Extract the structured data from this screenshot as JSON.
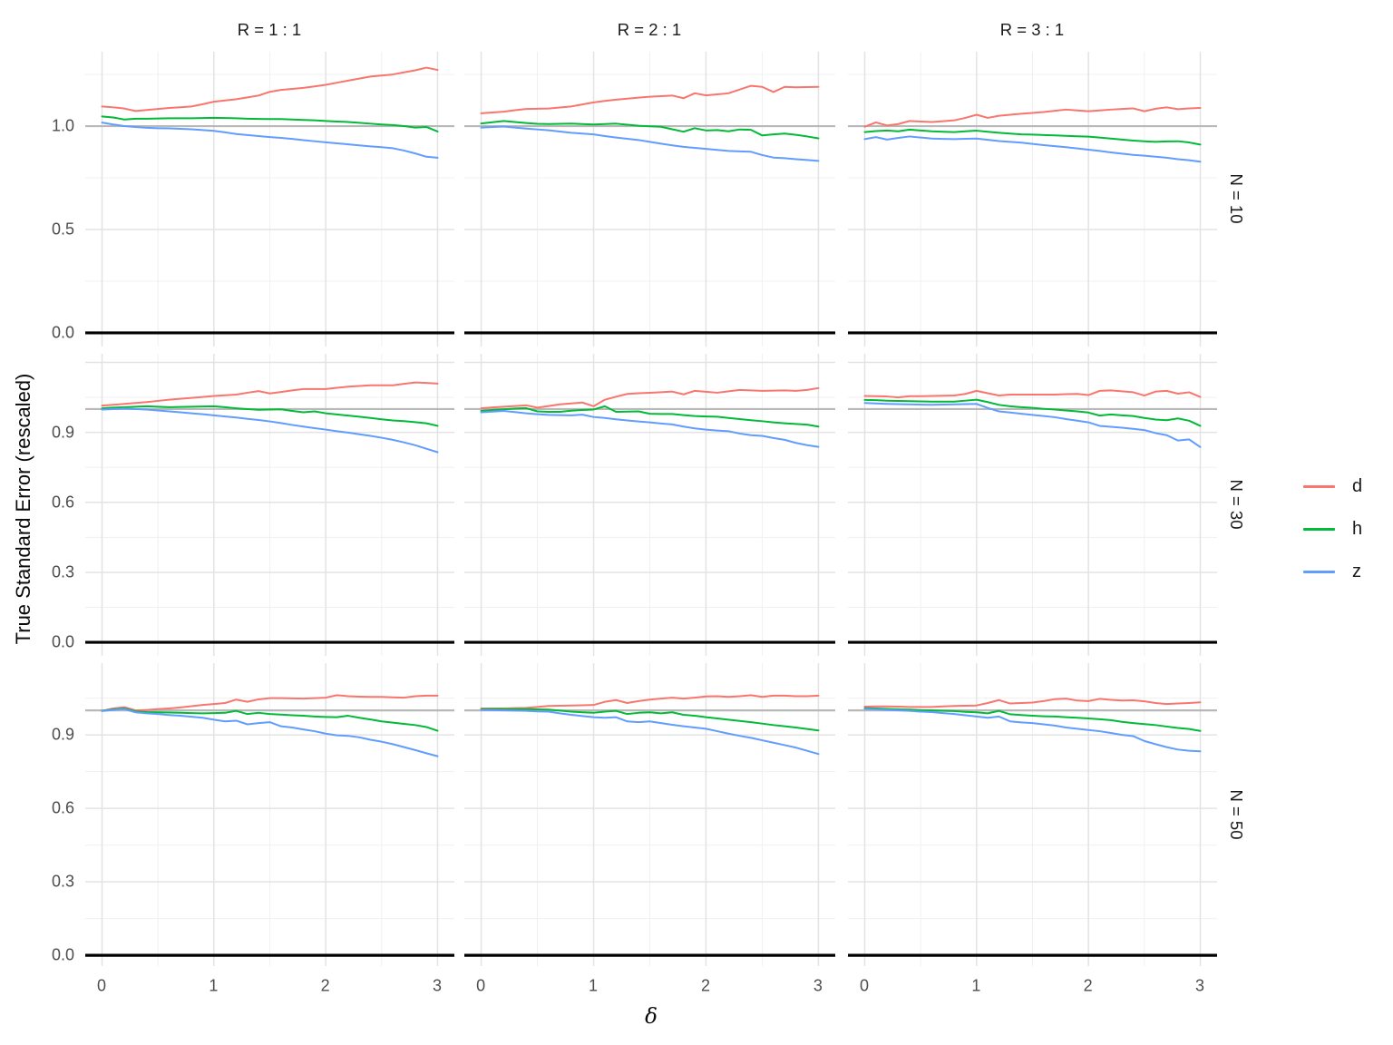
{
  "chart_data": {
    "type": "line",
    "title": "",
    "xlabel": "δ",
    "ylabel": "True Standard Error (rescaled)",
    "legend_position": "right",
    "grid": true,
    "x_start": 0,
    "x_step": 0.1,
    "x_ticks": [
      0,
      1,
      2,
      3
    ],
    "x_tick_labels": [
      "0",
      "1",
      "2",
      "3"
    ],
    "x_minor": [
      0.5,
      1.5,
      2.5
    ],
    "xlim": [
      -0.15,
      3.15
    ],
    "ref_line": 1.0,
    "zero_line": 0.0,
    "col_facets": [
      "R = 1 : 1",
      "R = 2 : 1",
      "R = 3 : 1"
    ],
    "row_facets": [
      "N = 10",
      "N = 30",
      "N = 50"
    ],
    "series_names": [
      "d",
      "h",
      "z"
    ],
    "series_colors": [
      "#F8766D",
      "#00BA38",
      "#619CFF"
    ],
    "style": {
      "ref_line_color": "#B8B8B8",
      "zero_line_color": "#000000",
      "grid_major_color": "#E3E3E3",
      "grid_minor_color": "#F0F0F0",
      "tick_text_color": "#4d4d4d",
      "strip_text_color": "#1a1a1a"
    },
    "rows": [
      {
        "label": "N = 10",
        "ylim": [
          -0.066,
          1.36
        ],
        "y_ticks": [
          0.0,
          0.5,
          1.0
        ],
        "y_tick_labels": [
          "0.0",
          "0.5",
          "1.0"
        ],
        "y_minor": [
          0.25,
          0.75,
          1.25
        ],
        "y_major_extra": []
      },
      {
        "label": "N = 30",
        "ylim": [
          -0.058,
          1.237
        ],
        "y_ticks": [
          0.0,
          0.3,
          0.6,
          0.9
        ],
        "y_tick_labels": [
          "0.0",
          "0.3",
          "0.6",
          "0.9"
        ],
        "y_minor": [
          0.15,
          0.45,
          0.75,
          1.05
        ],
        "y_major_extra": [
          1.2
        ]
      },
      {
        "label": "N = 50",
        "ylim": [
          -0.044,
          1.193
        ],
        "y_ticks": [
          0.0,
          0.3,
          0.6,
          0.9
        ],
        "y_tick_labels": [
          "0.0",
          "0.3",
          "0.6",
          "0.9"
        ],
        "y_minor": [
          0.15,
          0.45,
          0.75,
          1.05
        ],
        "y_major_extra": []
      }
    ],
    "panels": [
      [
        {
          "d": [
            1.095,
            1.091,
            1.085,
            1.073,
            1.078,
            1.083,
            1.088,
            1.091,
            1.095,
            1.106,
            1.118,
            1.124,
            1.13,
            1.139,
            1.148,
            1.166,
            1.175,
            1.18,
            1.185,
            1.192,
            1.2,
            1.21,
            1.22,
            1.23,
            1.24,
            1.245,
            1.25,
            1.26,
            1.27,
            1.283,
            1.272
          ],
          "h": [
            1.047,
            1.042,
            1.032,
            1.036,
            1.036,
            1.037,
            1.038,
            1.038,
            1.038,
            1.039,
            1.04,
            1.039,
            1.038,
            1.036,
            1.035,
            1.034,
            1.034,
            1.032,
            1.03,
            1.028,
            1.025,
            1.022,
            1.02,
            1.016,
            1.012,
            1.008,
            1.005,
            1.0,
            0.993,
            0.996,
            0.974
          ],
          "z": [
            1.017,
            1.008,
            1.0,
            0.996,
            0.992,
            0.99,
            0.989,
            0.987,
            0.985,
            0.981,
            0.977,
            0.97,
            0.962,
            0.957,
            0.952,
            0.947,
            0.943,
            0.938,
            0.932,
            0.927,
            0.922,
            0.917,
            0.912,
            0.907,
            0.902,
            0.898,
            0.893,
            0.882,
            0.868,
            0.852,
            0.847
          ]
        },
        {
          "d": [
            1.062,
            1.066,
            1.07,
            1.077,
            1.083,
            1.084,
            1.085,
            1.09,
            1.095,
            1.105,
            1.115,
            1.122,
            1.128,
            1.133,
            1.138,
            1.142,
            1.145,
            1.148,
            1.135,
            1.159,
            1.149,
            1.154,
            1.159,
            1.177,
            1.195,
            1.19,
            1.165,
            1.19,
            1.188,
            1.189,
            1.19
          ],
          "h": [
            1.013,
            1.019,
            1.025,
            1.02,
            1.015,
            1.011,
            1.01,
            1.011,
            1.012,
            1.01,
            1.008,
            1.01,
            1.012,
            1.007,
            1.002,
            0.999,
            0.997,
            0.985,
            0.973,
            0.99,
            0.979,
            0.981,
            0.975,
            0.984,
            0.982,
            0.955,
            0.96,
            0.964,
            0.958,
            0.95,
            0.941
          ],
          "z": [
            0.993,
            0.996,
            0.998,
            0.993,
            0.988,
            0.984,
            0.98,
            0.974,
            0.968,
            0.964,
            0.96,
            0.952,
            0.945,
            0.939,
            0.933,
            0.924,
            0.915,
            0.907,
            0.9,
            0.895,
            0.89,
            0.885,
            0.88,
            0.878,
            0.876,
            0.86,
            0.848,
            0.845,
            0.84,
            0.836,
            0.832
          ]
        },
        {
          "d": [
            0.997,
            1.018,
            1.003,
            1.01,
            1.025,
            1.022,
            1.02,
            1.024,
            1.028,
            1.04,
            1.055,
            1.04,
            1.05,
            1.055,
            1.06,
            1.064,
            1.068,
            1.074,
            1.08,
            1.076,
            1.072,
            1.076,
            1.08,
            1.083,
            1.086,
            1.072,
            1.084,
            1.091,
            1.082,
            1.086,
            1.088
          ],
          "h": [
            0.971,
            0.976,
            0.979,
            0.975,
            0.983,
            0.979,
            0.975,
            0.973,
            0.971,
            0.975,
            0.978,
            0.973,
            0.968,
            0.964,
            0.96,
            0.959,
            0.957,
            0.955,
            0.953,
            0.951,
            0.949,
            0.945,
            0.94,
            0.935,
            0.93,
            0.927,
            0.924,
            0.926,
            0.927,
            0.921,
            0.911
          ],
          "z": [
            0.937,
            0.947,
            0.935,
            0.943,
            0.95,
            0.945,
            0.94,
            0.938,
            0.937,
            0.939,
            0.94,
            0.934,
            0.928,
            0.924,
            0.92,
            0.914,
            0.908,
            0.903,
            0.898,
            0.892,
            0.886,
            0.88,
            0.873,
            0.867,
            0.861,
            0.857,
            0.852,
            0.847,
            0.84,
            0.835,
            0.828
          ]
        }
      ],
      [
        {
          "d": [
            1.015,
            1.018,
            1.022,
            1.026,
            1.03,
            1.035,
            1.04,
            1.044,
            1.048,
            1.052,
            1.056,
            1.059,
            1.062,
            1.07,
            1.077,
            1.067,
            1.073,
            1.08,
            1.086,
            1.086,
            1.086,
            1.091,
            1.096,
            1.099,
            1.102,
            1.102,
            1.102,
            1.108,
            1.114,
            1.112,
            1.109
          ],
          "h": [
            1.003,
            1.006,
            1.008,
            1.01,
            1.012,
            1.01,
            1.008,
            1.009,
            1.01,
            1.011,
            1.012,
            1.008,
            1.003,
            1.0,
            0.997,
            0.998,
            0.999,
            0.992,
            0.986,
            0.99,
            0.982,
            0.977,
            0.972,
            0.967,
            0.962,
            0.956,
            0.951,
            0.948,
            0.944,
            0.939,
            0.928
          ],
          "z": [
            0.998,
            1.0,
            1.002,
            1.0,
            0.998,
            0.994,
            0.99,
            0.986,
            0.982,
            0.978,
            0.973,
            0.968,
            0.964,
            0.958,
            0.953,
            0.947,
            0.94,
            0.932,
            0.925,
            0.918,
            0.912,
            0.905,
            0.899,
            0.892,
            0.885,
            0.877,
            0.868,
            0.857,
            0.845,
            0.83,
            0.815
          ]
        },
        {
          "d": [
            1.003,
            1.007,
            1.01,
            1.013,
            1.016,
            1.006,
            1.013,
            1.02,
            1.024,
            1.028,
            1.012,
            1.04,
            1.053,
            1.065,
            1.068,
            1.07,
            1.072,
            1.075,
            1.063,
            1.078,
            1.074,
            1.07,
            1.076,
            1.082,
            1.08,
            1.078,
            1.079,
            1.08,
            1.078,
            1.082,
            1.09
          ],
          "h": [
            0.992,
            0.996,
            0.999,
            1.002,
            1.004,
            0.99,
            0.988,
            0.988,
            0.993,
            0.996,
            0.998,
            1.012,
            0.988,
            0.989,
            0.99,
            0.98,
            0.979,
            0.979,
            0.974,
            0.97,
            0.968,
            0.967,
            0.962,
            0.957,
            0.952,
            0.948,
            0.943,
            0.939,
            0.936,
            0.933,
            0.925
          ],
          "z": [
            0.986,
            0.989,
            0.992,
            0.987,
            0.982,
            0.978,
            0.975,
            0.974,
            0.973,
            0.976,
            0.966,
            0.962,
            0.956,
            0.951,
            0.947,
            0.943,
            0.938,
            0.934,
            0.925,
            0.917,
            0.912,
            0.908,
            0.905,
            0.895,
            0.888,
            0.885,
            0.876,
            0.868,
            0.855,
            0.845,
            0.838
          ]
        },
        {
          "d": [
            1.056,
            1.055,
            1.054,
            1.05,
            1.055,
            1.055,
            1.056,
            1.057,
            1.058,
            1.065,
            1.078,
            1.068,
            1.058,
            1.062,
            1.062,
            1.062,
            1.062,
            1.062,
            1.064,
            1.065,
            1.06,
            1.078,
            1.08,
            1.076,
            1.072,
            1.058,
            1.075,
            1.078,
            1.066,
            1.072,
            1.052
          ],
          "h": [
            1.039,
            1.038,
            1.036,
            1.035,
            1.034,
            1.033,
            1.032,
            1.032,
            1.032,
            1.036,
            1.04,
            1.03,
            1.018,
            1.012,
            1.008,
            1.005,
            1.001,
            0.998,
            0.994,
            0.99,
            0.985,
            0.972,
            0.977,
            0.973,
            0.97,
            0.962,
            0.955,
            0.952,
            0.96,
            0.95,
            0.928
          ],
          "z": [
            1.026,
            1.024,
            1.022,
            1.021,
            1.02,
            1.019,
            1.018,
            1.019,
            1.02,
            1.021,
            1.022,
            1.005,
            0.99,
            0.985,
            0.98,
            0.975,
            0.97,
            0.965,
            0.957,
            0.95,
            0.943,
            0.928,
            0.924,
            0.92,
            0.915,
            0.91,
            0.897,
            0.888,
            0.865,
            0.87,
            0.837
          ]
        }
      ],
      [
        {
          "d": [
            0.998,
            1.008,
            1.013,
            1.0,
            1.002,
            1.005,
            1.008,
            1.012,
            1.017,
            1.022,
            1.026,
            1.03,
            1.044,
            1.035,
            1.045,
            1.05,
            1.05,
            1.049,
            1.048,
            1.05,
            1.052,
            1.062,
            1.058,
            1.056,
            1.055,
            1.055,
            1.053,
            1.052,
            1.058,
            1.06,
            1.06
          ],
          "h": [
            0.998,
            1.004,
            1.008,
            0.996,
            0.993,
            0.992,
            0.991,
            0.99,
            0.989,
            0.988,
            0.989,
            0.99,
            0.998,
            0.985,
            0.99,
            0.985,
            0.983,
            0.98,
            0.978,
            0.975,
            0.973,
            0.972,
            0.978,
            0.97,
            0.963,
            0.955,
            0.95,
            0.945,
            0.94,
            0.932,
            0.917
          ],
          "z": [
            0.997,
            1.002,
            1.005,
            0.992,
            0.988,
            0.985,
            0.981,
            0.978,
            0.974,
            0.97,
            0.962,
            0.955,
            0.958,
            0.943,
            0.948,
            0.952,
            0.935,
            0.93,
            0.922,
            0.915,
            0.905,
            0.898,
            0.896,
            0.89,
            0.88,
            0.872,
            0.862,
            0.85,
            0.838,
            0.825,
            0.813
          ]
        },
        {
          "d": [
            1.008,
            1.008,
            1.008,
            1.009,
            1.01,
            1.014,
            1.018,
            1.019,
            1.02,
            1.021,
            1.022,
            1.035,
            1.042,
            1.03,
            1.038,
            1.044,
            1.048,
            1.052,
            1.048,
            1.052,
            1.057,
            1.058,
            1.055,
            1.058,
            1.062,
            1.055,
            1.06,
            1.06,
            1.058,
            1.058,
            1.06
          ],
          "h": [
            1.005,
            1.005,
            1.005,
            1.005,
            1.005,
            1.004,
            1.003,
            0.999,
            0.995,
            0.992,
            0.99,
            0.995,
            0.998,
            0.985,
            0.99,
            0.992,
            0.988,
            0.992,
            0.982,
            0.978,
            0.972,
            0.967,
            0.962,
            0.957,
            0.952,
            0.946,
            0.94,
            0.935,
            0.93,
            0.924,
            0.918
          ],
          "z": [
            1.002,
            1.001,
            1.0,
            0.999,
            0.998,
            0.996,
            0.995,
            0.988,
            0.982,
            0.977,
            0.972,
            0.97,
            0.972,
            0.955,
            0.952,
            0.955,
            0.948,
            0.941,
            0.935,
            0.93,
            0.925,
            0.915,
            0.905,
            0.896,
            0.888,
            0.878,
            0.868,
            0.858,
            0.848,
            0.835,
            0.822
          ]
        },
        {
          "d": [
            1.015,
            1.016,
            1.016,
            1.015,
            1.014,
            1.014,
            1.014,
            1.016,
            1.018,
            1.019,
            1.02,
            1.03,
            1.042,
            1.028,
            1.03,
            1.032,
            1.038,
            1.046,
            1.048,
            1.04,
            1.038,
            1.047,
            1.043,
            1.04,
            1.041,
            1.037,
            1.03,
            1.026,
            1.028,
            1.03,
            1.033
          ],
          "h": [
            1.009,
            1.008,
            1.006,
            1.004,
            1.003,
            1.001,
            1.0,
            0.998,
            0.997,
            0.994,
            0.992,
            0.988,
            0.998,
            0.984,
            0.981,
            0.978,
            0.976,
            0.975,
            0.972,
            0.97,
            0.967,
            0.964,
            0.96,
            0.953,
            0.948,
            0.944,
            0.94,
            0.934,
            0.928,
            0.924,
            0.916
          ],
          "z": [
            1.006,
            1.004,
            1.002,
            1.0,
            0.998,
            0.995,
            0.993,
            0.989,
            0.985,
            0.98,
            0.975,
            0.97,
            0.975,
            0.955,
            0.951,
            0.948,
            0.943,
            0.938,
            0.93,
            0.925,
            0.92,
            0.915,
            0.908,
            0.9,
            0.895,
            0.875,
            0.862,
            0.85,
            0.84,
            0.835,
            0.833
          ]
        }
      ]
    ]
  }
}
